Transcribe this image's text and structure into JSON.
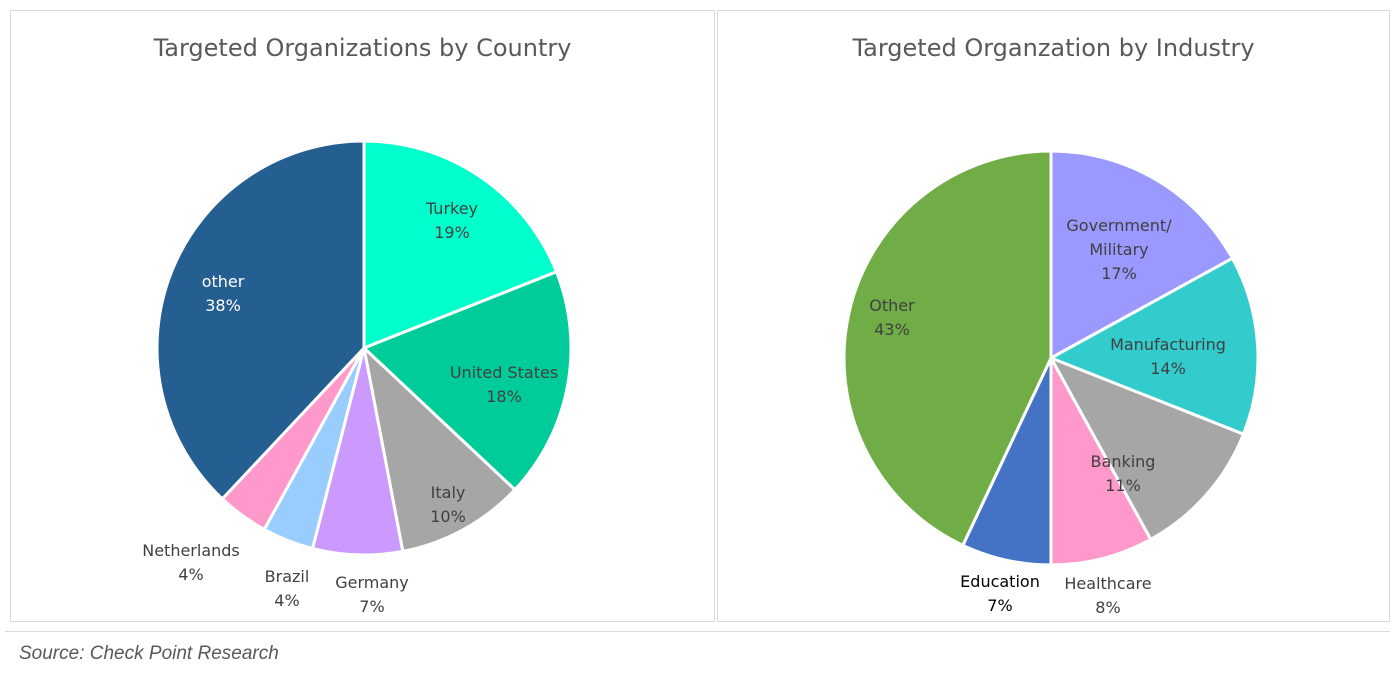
{
  "chart_data": [
    {
      "type": "pie",
      "title": "Targeted Organizations by Country",
      "start_angle_deg": 0,
      "slices": [
        {
          "label": "Turkey",
          "value": 19,
          "value_label": "19%",
          "color": "#00FFCC"
        },
        {
          "label": "United States",
          "value": 18,
          "value_label": "18%",
          "color": "#00CC99"
        },
        {
          "label": "Italy",
          "value": 10,
          "value_label": "10%",
          "color": "#A6A6A6"
        },
        {
          "label": "Germany",
          "value": 7,
          "value_label": "7%",
          "color": "#CC99FF"
        },
        {
          "label": "Brazil",
          "value": 4,
          "value_label": "4%",
          "color": "#99CCFF"
        },
        {
          "label": "Netherlands",
          "value": 4,
          "value_label": "4%",
          "color": "#FF99CC"
        },
        {
          "label": "other",
          "value": 38,
          "value_label": "38%",
          "color": "#255E91"
        }
      ]
    },
    {
      "type": "pie",
      "title": "Targeted Organzation by Industry",
      "start_angle_deg": 0,
      "slices": [
        {
          "label": "Government/ Military",
          "value": 17,
          "value_label": "17%",
          "color": "#9999FF"
        },
        {
          "label": "Manufacturing",
          "value": 14,
          "value_label": "14%",
          "color": "#33CCCC"
        },
        {
          "label": "Banking",
          "value": 11,
          "value_label": "11%",
          "color": "#A6A6A6"
        },
        {
          "label": "Healthcare",
          "value": 8,
          "value_label": "8%",
          "color": "#FF99CC"
        },
        {
          "label": "Education",
          "value": 7,
          "value_label": "7%",
          "color": "#4472C4"
        },
        {
          "label": "Other",
          "value": 43,
          "value_label": "43%",
          "color": "#70AD47"
        }
      ]
    }
  ],
  "footer": {
    "source": "Source: Check Point Research"
  }
}
